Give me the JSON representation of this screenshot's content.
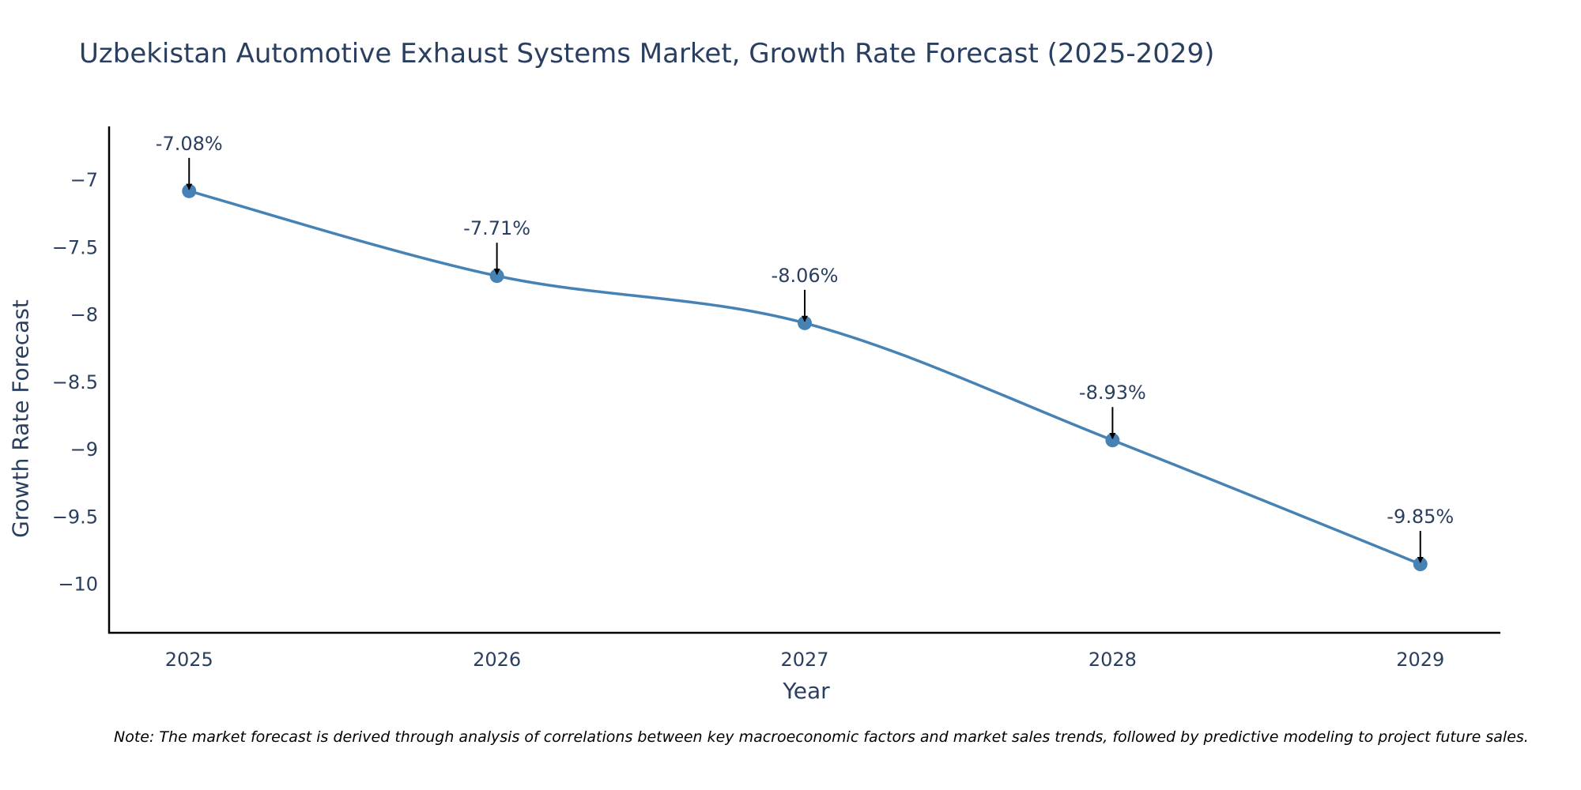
{
  "colors": {
    "line": "#4682b4",
    "marker": "#4682b4",
    "axis": "#000000",
    "text": "#2a3f5f",
    "arrow": "#000000"
  },
  "chart_data": {
    "type": "line",
    "title": "Uzbekistan Automotive Exhaust Systems Market, Growth Rate Forecast (2025-2029)",
    "xlabel": "Year",
    "ylabel": "Growth Rate Forecast",
    "categories": [
      "2025",
      "2026",
      "2027",
      "2028",
      "2029"
    ],
    "series": [
      {
        "name": "Growth Rate Forecast",
        "values": [
          -7.08,
          -7.71,
          -8.06,
          -8.93,
          -9.85
        ]
      }
    ],
    "annotations": [
      "-7.08%",
      "-7.71%",
      "-8.06%",
      "-8.93%",
      "-9.85%"
    ],
    "yticks": [
      -7,
      -7.5,
      -8,
      -8.5,
      -9,
      -9.5,
      -10
    ],
    "ytick_labels": [
      "−7",
      "−7.5",
      "−8",
      "−8.5",
      "−9",
      "−9.5",
      "−10"
    ],
    "ylim": [
      -10.36,
      -6.6
    ],
    "xlim": [
      2024.74,
      2029.26
    ],
    "grid": false,
    "line_shape": "spline"
  },
  "note": "Note: The market forecast is derived through analysis of correlations between key macroeconomic factors and market sales trends, followed by predictive modeling to project future sales."
}
